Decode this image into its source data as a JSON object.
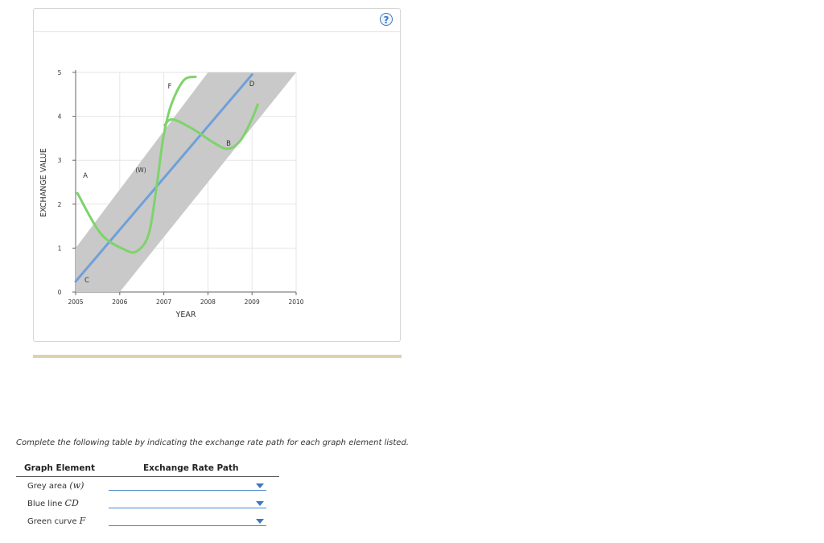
{
  "chart_data": {
    "type": "line",
    "ylabel": "EXCHANGE VALUE",
    "xlabel": "YEAR",
    "xlim": [
      2005,
      2010
    ],
    "xticks": [
      2005,
      2006,
      2007,
      2008,
      2009,
      2010
    ],
    "ylim": [
      0,
      5
    ],
    "yticks": [
      0,
      1,
      2,
      3,
      4,
      5
    ],
    "grid": true,
    "annotations": [
      "A",
      "F",
      "D",
      "B",
      "C",
      "(W)"
    ],
    "series": [
      {
        "color": "#c9c9c9",
        "fill": true,
        "x": [
          2005,
          2005,
          2008,
          2010,
          2006
        ],
        "values": [
          0,
          1,
          5,
          5,
          0
        ]
      },
      {
        "color": "#6fa0d8",
        "fill": false,
        "x": [
          2005,
          2009
        ],
        "values": [
          0.24,
          4.95
        ]
      },
      {
        "color": "#7ed36b",
        "fill": false,
        "x": [
          2005.04,
          2005.57,
          2006.1,
          2006.39,
          2006.66,
          2006.84,
          2006.99,
          2007.17,
          2007.45,
          2007.72
        ],
        "values": [
          2.25,
          1.33,
          0.97,
          0.93,
          1.33,
          2.43,
          3.53,
          4.27,
          4.82,
          4.9
        ]
      },
      {
        "color": "#7ed36b",
        "fill": false,
        "x": [
          2007.02,
          2007.2,
          2007.66,
          2008.13,
          2008.45,
          2008.73,
          2008.98,
          2009.13
        ],
        "values": [
          3.8,
          3.93,
          3.71,
          3.4,
          3.26,
          3.44,
          3.9,
          4.27
        ]
      }
    ]
  },
  "help": "?",
  "instructions": "Complete the following table by indicating the exchange rate path for each graph element listed.",
  "table": {
    "headers": [
      "Graph Element",
      "Exchange Rate Path"
    ],
    "rows": [
      {
        "element": "Grey area",
        "symbol": "(w)"
      },
      {
        "element": "Blue line",
        "symbol": "CD"
      },
      {
        "element": "Green curve",
        "symbol": "F"
      }
    ]
  }
}
